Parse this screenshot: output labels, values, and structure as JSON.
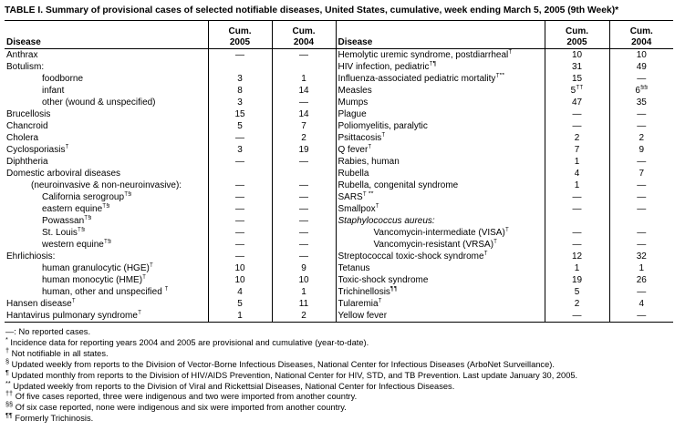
{
  "title": "TABLE I. Summary of provisional cases of selected notifiable diseases, United States, cumulative, week ending March 5, 2005 (9th Week)*",
  "colors": {
    "text": "#000000",
    "border": "#000000",
    "background": "#ffffff"
  },
  "table": {
    "header": {
      "disease": "Disease",
      "cum": "Cum.",
      "year_2005": "2005",
      "year_2004": "2004"
    },
    "rows_left": [
      {
        "label": "Anthrax",
        "ind": 0,
        "v2005": "—",
        "v2004": "—"
      },
      {
        "label": "Botulism:",
        "ind": 0,
        "v2005": "",
        "v2004": ""
      },
      {
        "label": "foodborne",
        "ind": 2,
        "v2005": "3",
        "v2004": "1"
      },
      {
        "label": "infant",
        "ind": 2,
        "v2005": "8",
        "v2004": "14"
      },
      {
        "label": "other (wound & unspecified)",
        "ind": 2,
        "v2005": "3",
        "v2004": "—"
      },
      {
        "label": "Brucellosis",
        "ind": 0,
        "v2005": "15",
        "v2004": "14"
      },
      {
        "label": "Chancroid",
        "ind": 0,
        "v2005": "5",
        "v2004": "7"
      },
      {
        "label": "Cholera",
        "ind": 0,
        "v2005": "—",
        "v2004": "2"
      },
      {
        "label": "Cyclosporiasis",
        "sup": "†",
        "ind": 0,
        "v2005": "3",
        "v2004": "19"
      },
      {
        "label": "Diphtheria",
        "ind": 0,
        "v2005": "—",
        "v2004": "—"
      },
      {
        "label": "Domestic arboviral diseases",
        "ind": 0,
        "v2005": "",
        "v2004": ""
      },
      {
        "label": "(neuroinvasive & non-neuroinvasive):",
        "ind": 1,
        "v2005": "—",
        "v2004": "—"
      },
      {
        "label": "California serogroup",
        "sup": "†§",
        "ind": 2,
        "v2005": "—",
        "v2004": "—"
      },
      {
        "label": "eastern equine",
        "sup": "†§",
        "ind": 2,
        "v2005": "—",
        "v2004": "—"
      },
      {
        "label": "Powassan",
        "sup": "†§",
        "ind": 2,
        "v2005": "—",
        "v2004": "—"
      },
      {
        "label": "St. Louis",
        "sup": "†§",
        "ind": 2,
        "v2005": "—",
        "v2004": "—"
      },
      {
        "label": "western equine",
        "sup": "†§",
        "ind": 2,
        "v2005": "—",
        "v2004": "—"
      },
      {
        "label": "Ehrlichiosis:",
        "ind": 0,
        "v2005": "—",
        "v2004": "—"
      },
      {
        "label": "human granulocytic (HGE)",
        "sup": "†",
        "ind": 2,
        "v2005": "10",
        "v2004": "9"
      },
      {
        "label": "human monocytic (HME)",
        "sup": "†",
        "ind": 2,
        "v2005": "10",
        "v2004": "10"
      },
      {
        "label": "human, other and unspecified ",
        "sup": "†",
        "ind": 2,
        "v2005": "4",
        "v2004": "1"
      },
      {
        "label": "Hansen disease",
        "sup": "†",
        "ind": 0,
        "v2005": "5",
        "v2004": "11"
      },
      {
        "label": "Hantavirus pulmonary syndrome",
        "sup": "†",
        "ind": 0,
        "v2005": "1",
        "v2004": "2"
      }
    ],
    "rows_right": [
      {
        "label": "Hemolytic uremic syndrome, postdiarrheal",
        "sup": "†",
        "ind": 0,
        "v2005": "10",
        "v2004": "10"
      },
      {
        "label": "HIV infection, pediatric",
        "sup": "†¶",
        "ind": 0,
        "v2005": "31",
        "v2004": "49"
      },
      {
        "label": "Influenza-associated pediatric mortality",
        "sup": "†**",
        "ind": 0,
        "v2005": "15",
        "v2004": "—"
      },
      {
        "label": "Measles",
        "ind": 0,
        "v2005": "5",
        "sup2005": "††",
        "v2004": "6",
        "sup2004": "§§"
      },
      {
        "label": "Mumps",
        "ind": 0,
        "v2005": "47",
        "v2004": "35"
      },
      {
        "label": "Plague",
        "ind": 0,
        "v2005": "—",
        "v2004": "—"
      },
      {
        "label": "Poliomyelitis, paralytic",
        "ind": 0,
        "v2005": "—",
        "v2004": "—"
      },
      {
        "label": "Psittacosis",
        "sup": "†",
        "ind": 0,
        "v2005": "2",
        "v2004": "2"
      },
      {
        "label": "Q fever",
        "sup": "†",
        "ind": 0,
        "v2005": "7",
        "v2004": "9"
      },
      {
        "label": "Rabies, human",
        "ind": 0,
        "v2005": "1",
        "v2004": "—"
      },
      {
        "label": "Rubella",
        "ind": 0,
        "v2005": "4",
        "v2004": "7"
      },
      {
        "label": "Rubella, congenital syndrome",
        "ind": 0,
        "v2005": "1",
        "v2004": "—"
      },
      {
        "label": "SARS",
        "sup": "† **",
        "ind": 0,
        "v2005": "—",
        "v2004": "—"
      },
      {
        "label": "Smallpox",
        "sup": "†",
        "ind": 0,
        "v2005": "—",
        "v2004": "—"
      },
      {
        "label": "Staphylococcus aureus:",
        "ind": 0,
        "italic": true,
        "v2005": "",
        "v2004": ""
      },
      {
        "label": "Vancomycin-intermediate (VISA)",
        "sup": "†",
        "ind": 2,
        "v2005": "—",
        "v2004": "—"
      },
      {
        "label": "Vancomycin-resistant (VRSA)",
        "sup": "†",
        "ind": 2,
        "v2005": "—",
        "v2004": "—"
      },
      {
        "label": "Streptococcal toxic-shock syndrome",
        "sup": "†",
        "ind": 0,
        "v2005": "12",
        "v2004": "32"
      },
      {
        "label": "Tetanus",
        "ind": 0,
        "v2005": "1",
        "v2004": "1"
      },
      {
        "label": "Toxic-shock syndrome",
        "ind": 0,
        "v2005": "19",
        "v2004": "26"
      },
      {
        "label": "Trichinellosis",
        "sup": "¶¶",
        "ind": 0,
        "v2005": "5",
        "v2004": "—"
      },
      {
        "label": "Tularemia",
        "sup": "†",
        "ind": 0,
        "v2005": "2",
        "v2004": "4"
      },
      {
        "label": "Yellow fever",
        "ind": 0,
        "v2005": "—",
        "v2004": "—"
      }
    ]
  },
  "footnotes": [
    {
      "marker": "—:",
      "sup": false,
      "text": "No reported cases."
    },
    {
      "marker": "*",
      "sup": true,
      "text": "Incidence data for reporting years 2004 and 2005 are provisional and cumulative (year-to-date)."
    },
    {
      "marker": "†",
      "sup": true,
      "text": "Not notifiable in all states."
    },
    {
      "marker": "§",
      "sup": true,
      "text": "Updated weekly from reports to the Division of Vector-Borne Infectious Diseases, National Center for Infectious Diseases (ArboNet Surveillance)."
    },
    {
      "marker": "¶",
      "sup": true,
      "text": "Updated monthly from reports to the Division of HIV/AIDS Prevention, National Center for HIV, STD, and TB Prevention. Last update January 30, 2005."
    },
    {
      "marker": "**",
      "sup": true,
      "text": "Updated weekly from reports to the Division of Viral and Rickettsial Diseases, National Center for Infectious Diseases."
    },
    {
      "marker": "††",
      "sup": true,
      "text": "Of five cases reported, three were indigenous and two were imported from another country."
    },
    {
      "marker": "§§",
      "sup": true,
      "text": "Of six case reported, none were indigenous and six were imported from another country."
    },
    {
      "marker": "¶¶",
      "sup": true,
      "text": "Formerly Trichinosis."
    }
  ]
}
